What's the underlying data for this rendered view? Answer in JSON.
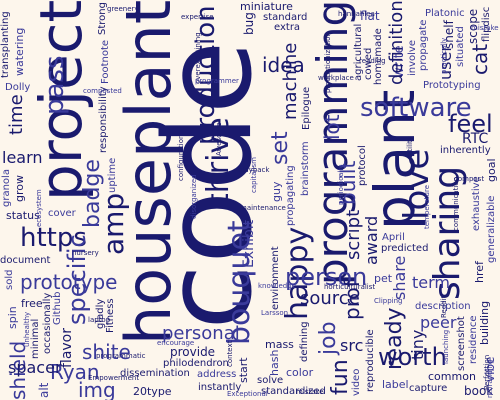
{
  "colors": {
    "background": "#fdf6ec",
    "ink": "#1a1a6e",
    "ink_light": "#3a3a9a"
  },
  "cloud": {
    "words": [
      {
        "text": "code",
        "weight": 1.0
      },
      {
        "text": "houseplant",
        "weight": 0.62
      },
      {
        "text": "project",
        "weight": 0.58
      },
      {
        "text": "plant",
        "weight": 0.55
      },
      {
        "text": "programming",
        "weight": 0.46
      },
      {
        "text": "sharing",
        "weight": 0.36
      },
      {
        "text": "love",
        "weight": 0.34
      },
      {
        "text": "thrive",
        "weight": 0.3
      },
      {
        "text": "bouquet",
        "weight": 0.3
      },
      {
        "text": "happy",
        "weight": 0.3
      },
      {
        "text": "production",
        "weight": 0.28
      },
      {
        "text": "software",
        "weight": 0.27
      },
      {
        "text": "amp",
        "weight": 0.27
      },
      {
        "text": "https",
        "weight": 0.26
      },
      {
        "text": "pass",
        "weight": 0.25
      },
      {
        "text": "person",
        "weight": 0.24
      },
      {
        "text": "worth",
        "weight": 0.24
      },
      {
        "text": "specific",
        "weight": 0.24
      },
      {
        "text": "badge",
        "weight": 0.23
      },
      {
        "text": "prototype",
        "weight": 0.23
      },
      {
        "text": "feel",
        "weight": 0.23
      },
      {
        "text": "ready",
        "weight": 0.22
      },
      {
        "text": "set",
        "weight": 0.22
      },
      {
        "text": "job",
        "weight": 0.22
      },
      {
        "text": "fun",
        "weight": 0.22
      },
      {
        "text": "img",
        "weight": 0.21
      },
      {
        "text": "write",
        "weight": 0.21
      },
      {
        "text": "idea",
        "weight": 0.21
      },
      {
        "text": "built",
        "weight": 0.2
      },
      {
        "text": "shite",
        "weight": 0.2
      },
      {
        "text": "Ryan",
        "weight": 0.2
      },
      {
        "text": "prof",
        "weight": 0.2
      },
      {
        "text": "shield",
        "weight": 0.2
      },
      {
        "text": "personal",
        "weight": 0.19
      },
      {
        "text": "definition",
        "weight": 0.19
      },
      {
        "text": "machine",
        "weight": 0.19
      },
      {
        "text": "lot",
        "weight": 0.18
      },
      {
        "text": "time",
        "weight": 0.18
      },
      {
        "text": "cat",
        "weight": 0.18
      },
      {
        "text": "source",
        "weight": 0.18
      },
      {
        "text": "script",
        "weight": 0.18
      },
      {
        "text": "learn",
        "weight": 0.17
      },
      {
        "text": "share",
        "weight": 0.17
      },
      {
        "text": "award",
        "weight": 0.17
      },
      {
        "text": "term",
        "weight": 0.17
      },
      {
        "text": "peer",
        "weight": 0.17
      },
      {
        "text": "tiny",
        "weight": 0.17
      },
      {
        "text": "flavor",
        "weight": 0.16
      },
      {
        "text": "src",
        "weight": 0.16
      },
      {
        "text": "spacer",
        "weight": 0.16
      },
      {
        "text": "snelf",
        "weight": 0.16
      },
      {
        "text": "user",
        "weight": 0.16
      },
      {
        "text": "alt",
        "weight": 0.16
      },
      {
        "text": "RTC",
        "weight": 0.15
      },
      {
        "text": "provide",
        "weight": 0.15
      },
      {
        "text": "bug",
        "weight": 0.15
      },
      {
        "text": "vibe",
        "weight": 0.15
      },
      {
        "text": "book",
        "weight": 0.15
      },
      {
        "text": "flat",
        "weight": 0.15
      },
      {
        "text": "scope",
        "weight": 0.15
      },
      {
        "text": "color",
        "weight": 0.14
      },
      {
        "text": "goal",
        "weight": 0.14
      },
      {
        "text": "label",
        "weight": 0.14
      },
      {
        "text": "guy",
        "weight": 0.14
      },
      {
        "text": "Exhibit",
        "weight": 0.14
      },
      {
        "text": "start",
        "weight": 0.14
      },
      {
        "text": "mass",
        "weight": 0.13
      },
      {
        "text": "spin",
        "weight": 0.13
      },
      {
        "text": "pet",
        "weight": 0.13
      },
      {
        "text": "common",
        "weight": 0.13
      },
      {
        "text": "grow",
        "weight": 0.13
      },
      {
        "text": "free",
        "weight": 0.13
      },
      {
        "text": "href",
        "weight": 0.13
      },
      {
        "text": "hash",
        "weight": 0.13
      },
      {
        "text": "20type",
        "weight": 0.12
      },
      {
        "text": "building",
        "weight": 0.12
      },
      {
        "text": "status",
        "weight": 0.12
      },
      {
        "text": "miniature",
        "weight": 0.12
      },
      {
        "text": "watering",
        "weight": 0.12
      },
      {
        "text": "Strong",
        "weight": 0.11
      },
      {
        "text": "brainstorm",
        "weight": 0.11
      },
      {
        "text": "dissemination",
        "weight": 0.11
      },
      {
        "text": "responsibility",
        "weight": 0.11
      },
      {
        "text": "Prototyping",
        "weight": 0.11
      },
      {
        "text": "Platonic",
        "weight": 0.11
      },
      {
        "text": "philodendron",
        "weight": 0.11
      },
      {
        "text": "standardized",
        "weight": 0.11
      },
      {
        "text": "transplanting",
        "weight": 0.11
      },
      {
        "text": "document",
        "weight": 0.11
      },
      {
        "text": "agricultural",
        "weight": 0.11
      },
      {
        "text": "horticulturalist",
        "weight": 0.11
      },
      {
        "text": "environment",
        "weight": 0.11
      },
      {
        "text": "propagate",
        "weight": 0.11
      },
      {
        "text": "propagating",
        "weight": 0.11
      },
      {
        "text": "exhaustive",
        "weight": 0.11
      },
      {
        "text": "generalizable",
        "weight": 0.11
      },
      {
        "text": "productionization",
        "weight": 0.11
      },
      {
        "text": "programmatic",
        "weight": 0.11
      },
      {
        "text": "reproducible",
        "weight": 0.11
      },
      {
        "text": "instantly",
        "weight": 0.1
      },
      {
        "text": "flipdisc",
        "weight": 0.1
      },
      {
        "text": "occasionally",
        "weight": 0.1
      },
      {
        "text": "involve",
        "weight": 0.1
      },
      {
        "text": "residence",
        "weight": 0.1
      },
      {
        "text": "communication",
        "weight": 0.1
      },
      {
        "text": "encourage",
        "weight": 0.1
      },
      {
        "text": "description",
        "weight": 0.1
      },
      {
        "text": "capture",
        "weight": 0.1
      },
      {
        "text": "address",
        "weight": 0.1
      },
      {
        "text": "rebranding",
        "weight": 0.1
      },
      {
        "text": "maintenance",
        "weight": 0.1
      },
      {
        "text": "standard",
        "weight": 0.1
      },
      {
        "text": "practically",
        "weight": 0.1
      },
      {
        "text": "capitalism",
        "weight": 0.1
      },
      {
        "text": "knowledge",
        "weight": 0.1
      },
      {
        "text": "temperature",
        "weight": 0.1
      },
      {
        "text": "homemade",
        "weight": 0.1
      },
      {
        "text": "composted",
        "weight": 0.1
      },
      {
        "text": "inherently",
        "weight": 0.1
      },
      {
        "text": "defining",
        "weight": 0.1
      },
      {
        "text": "unhealthy",
        "weight": 0.1
      },
      {
        "text": "screenshot",
        "weight": 0.1
      },
      {
        "text": "Perfection",
        "weight": 0.1
      },
      {
        "text": "Exceptional",
        "weight": 0.1
      },
      {
        "text": "periodically",
        "weight": 0.1
      },
      {
        "text": "disorganized",
        "weight": 0.1
      },
      {
        "text": "overexplaining",
        "weight": 0.1
      },
      {
        "text": "Empowerment",
        "weight": 0.1
      },
      {
        "text": "configuration",
        "weight": 0.1
      },
      {
        "text": "programmer",
        "weight": 0.1
      },
      {
        "text": "Awesome",
        "weight": 0.1
      },
      {
        "text": "compost",
        "weight": 0.1
      },
      {
        "text": "Epilogue",
        "weight": 0.1
      },
      {
        "text": "Footnote",
        "weight": 0.1
      },
      {
        "text": "Clipping",
        "weight": 0.1
      },
      {
        "text": "situated",
        "weight": 0.1
      },
      {
        "text": "predicted",
        "weight": 0.1
      },
      {
        "text": "cowed",
        "weight": 0.1
      },
      {
        "text": "launching",
        "weight": 0.1
      },
      {
        "text": "hannahlea",
        "weight": 0.1
      },
      {
        "text": "ecosystem",
        "weight": 0.1
      },
      {
        "text": "playback",
        "weight": 0.1
      },
      {
        "text": "gladly",
        "weight": 0.1
      },
      {
        "text": "cover",
        "weight": 0.1
      },
      {
        "text": "solve",
        "weight": 0.1
      },
      {
        "text": "sold",
        "weight": 0.1
      },
      {
        "text": "greenery",
        "weight": 0.1
      },
      {
        "text": "granola",
        "weight": 0.1
      },
      {
        "text": "nursery",
        "weight": 0.1
      },
      {
        "text": "workplace",
        "weight": 0.1
      },
      {
        "text": "April",
        "weight": 0.1
      },
      {
        "text": "Reddit",
        "weight": 0.1
      },
      {
        "text": "Larsson",
        "weight": 0.1
      },
      {
        "text": "Github",
        "weight": 0.1
      },
      {
        "text": "Fitness",
        "weight": 0.1
      },
      {
        "text": "Dolly",
        "weight": 0.1
      },
      {
        "text": "extra",
        "weight": 0.1
      },
      {
        "text": "laptop",
        "weight": 0.1
      },
      {
        "text": "minimal",
        "weight": 0.1
      },
      {
        "text": "protocol",
        "weight": 0.1
      },
      {
        "text": "uptime",
        "weight": 0.1
      },
      {
        "text": "expertise",
        "weight": 0.1
      },
      {
        "text": "utility",
        "weight": 0.1
      },
      {
        "text": "reading",
        "weight": 0.1
      },
      {
        "text": "video",
        "weight": 0.1
      },
      {
        "text": "mistake",
        "weight": 0.1
      },
      {
        "text": "context",
        "weight": 0.1
      },
      {
        "text": "mistake",
        "weight": 0.1
      }
    ]
  }
}
